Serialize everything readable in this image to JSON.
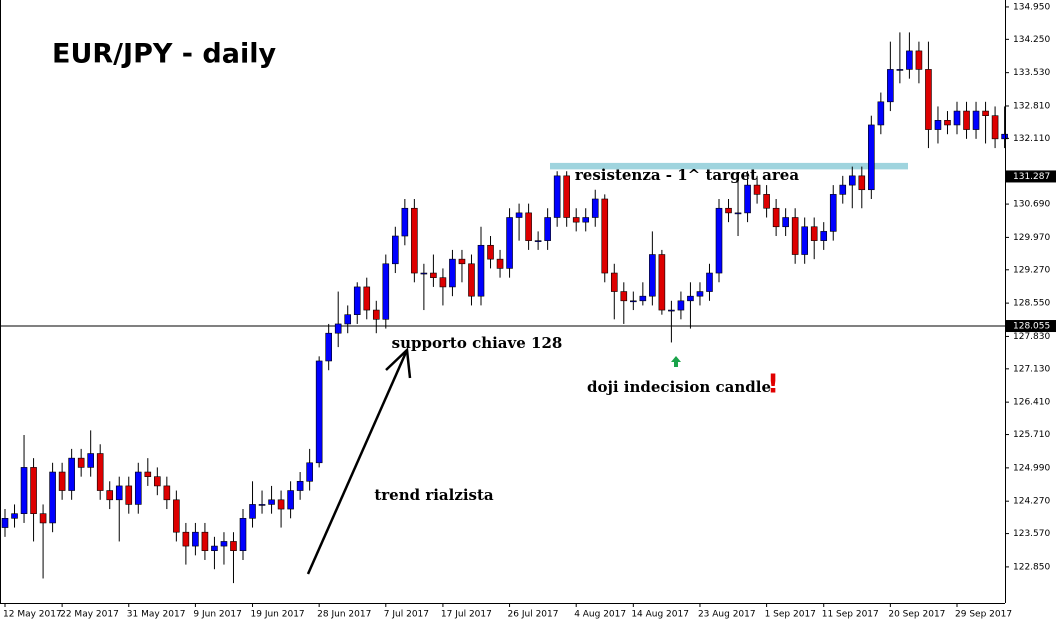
{
  "chart_data": {
    "type": "candlestick",
    "title": "EUR/JPY - daily",
    "categories": [
      "12 May 2017",
      null,
      null,
      null,
      null,
      null,
      "22 May 2017",
      null,
      null,
      null,
      null,
      null,
      null,
      "31 May 2017",
      null,
      null,
      null,
      null,
      null,
      null,
      "9 Jun 2017",
      null,
      null,
      null,
      null,
      null,
      "19 Jun 2017",
      null,
      null,
      null,
      null,
      null,
      null,
      "28 Jun 2017",
      null,
      null,
      null,
      null,
      null,
      null,
      "7 Jul 2017",
      null,
      null,
      null,
      null,
      null,
      "17 Jul 2017",
      null,
      null,
      null,
      null,
      null,
      null,
      "26 Jul 2017",
      null,
      null,
      null,
      null,
      null,
      null,
      "4 Aug 2017",
      null,
      null,
      null,
      null,
      null,
      "14 Aug 2017",
      null,
      null,
      null,
      null,
      null,
      null,
      "23 Aug 2017",
      null,
      null,
      null,
      null,
      null,
      null,
      "1 Sep 2017",
      null,
      null,
      null,
      null,
      null,
      "11 Sep 2017",
      null,
      null,
      null,
      null,
      null,
      null,
      "20 Sep 2017",
      null,
      null,
      null,
      null,
      null,
      null,
      "29 Sep 2017",
      null,
      null,
      null,
      null,
      null
    ],
    "open": [
      123.7,
      123.9,
      124.0,
      125.0,
      124.0,
      123.8,
      124.9,
      124.5,
      125.2,
      125.0,
      125.3,
      124.5,
      124.3,
      124.6,
      124.2,
      124.9,
      124.8,
      124.6,
      124.3,
      123.6,
      123.3,
      123.6,
      123.2,
      123.3,
      123.4,
      123.2,
      123.9,
      124.2,
      124.2,
      124.3,
      124.1,
      124.5,
      124.7,
      125.1,
      127.3,
      127.9,
      128.1,
      128.3,
      128.9,
      128.4,
      128.2,
      129.4,
      130.0,
      130.6,
      129.2,
      129.2,
      129.1,
      128.9,
      129.5,
      129.4,
      128.7,
      129.8,
      129.5,
      129.3,
      130.4,
      130.5,
      129.9,
      129.9,
      130.4,
      131.3,
      130.4,
      130.3,
      130.4,
      130.8,
      129.2,
      128.8,
      128.6,
      128.6,
      128.7,
      129.6,
      128.4,
      128.4,
      128.6,
      128.7,
      128.8,
      129.2,
      130.6,
      130.5,
      130.5,
      131.1,
      130.9,
      130.6,
      130.2,
      130.4,
      129.6,
      130.2,
      129.9,
      130.1,
      130.9,
      131.1,
      131.3,
      131.0,
      132.4,
      132.9,
      133.6,
      133.6,
      134.0,
      133.6,
      132.3,
      132.5,
      132.4,
      132.7,
      132.3,
      132.7,
      132.6,
      132.1
    ],
    "high": [
      124.1,
      124.2,
      125.7,
      125.2,
      124.2,
      125.1,
      125.1,
      125.4,
      125.4,
      125.8,
      125.5,
      124.7,
      124.8,
      124.8,
      125.1,
      125.2,
      125.0,
      124.8,
      124.5,
      123.8,
      123.8,
      123.8,
      123.5,
      123.6,
      123.6,
      124.1,
      124.7,
      124.5,
      124.6,
      124.5,
      124.7,
      124.9,
      125.4,
      127.4,
      128.1,
      128.8,
      128.5,
      129.0,
      129.1,
      128.6,
      129.6,
      130.2,
      130.8,
      130.8,
      129.4,
      129.6,
      129.3,
      129.7,
      129.7,
      129.6,
      130.2,
      130.0,
      129.7,
      130.6,
      130.7,
      130.7,
      130.1,
      130.6,
      131.4,
      131.4,
      130.6,
      130.6,
      131.0,
      130.9,
      129.4,
      129.0,
      128.8,
      129.0,
      130.1,
      129.7,
      128.6,
      128.8,
      129.0,
      129.0,
      129.4,
      130.8,
      130.8,
      131.3,
      131.4,
      131.3,
      131.1,
      130.8,
      130.6,
      130.6,
      130.4,
      130.4,
      130.3,
      131.1,
      131.3,
      131.5,
      131.5,
      132.6,
      133.1,
      134.2,
      134.4,
      134.4,
      134.2,
      134.2,
      132.8,
      132.7,
      132.9,
      132.9,
      132.9,
      132.9,
      132.8,
      132.8
    ],
    "low": [
      123.5,
      123.7,
      123.8,
      123.4,
      122.6,
      123.6,
      124.3,
      124.3,
      124.8,
      124.8,
      124.3,
      124.1,
      123.4,
      124.0,
      124.0,
      124.6,
      124.4,
      124.1,
      123.4,
      122.9,
      123.1,
      123.0,
      122.8,
      122.9,
      122.5,
      123.0,
      123.7,
      124.0,
      124.0,
      123.7,
      123.9,
      124.3,
      124.5,
      125.0,
      127.1,
      127.6,
      127.9,
      128.1,
      128.2,
      127.9,
      128.0,
      129.2,
      129.8,
      129.0,
      128.4,
      128.9,
      128.5,
      128.7,
      129.0,
      128.5,
      128.5,
      129.3,
      129.1,
      129.1,
      129.9,
      129.7,
      129.7,
      129.7,
      130.2,
      130.2,
      130.1,
      130.1,
      130.2,
      129.0,
      128.2,
      128.1,
      128.4,
      128.5,
      128.5,
      128.3,
      127.7,
      128.2,
      128.0,
      128.5,
      128.6,
      129.0,
      130.3,
      130.0,
      130.3,
      130.7,
      130.4,
      130.0,
      130.0,
      129.4,
      129.4,
      129.5,
      129.7,
      129.9,
      130.7,
      130.6,
      130.6,
      130.8,
      132.2,
      132.7,
      133.3,
      133.4,
      133.3,
      131.9,
      132.0,
      132.2,
      132.2,
      132.1,
      132.1,
      132.0,
      131.9,
      131.9
    ],
    "close": [
      123.9,
      124.0,
      125.0,
      124.0,
      123.8,
      124.9,
      124.5,
      125.2,
      125.0,
      125.3,
      124.5,
      124.3,
      124.6,
      124.2,
      124.9,
      124.8,
      124.6,
      124.3,
      123.6,
      123.3,
      123.6,
      123.2,
      123.3,
      123.4,
      123.2,
      123.9,
      124.2,
      124.2,
      124.3,
      124.1,
      124.5,
      124.7,
      125.1,
      127.3,
      127.9,
      128.1,
      128.3,
      128.9,
      128.4,
      128.2,
      129.4,
      130.0,
      130.6,
      129.2,
      129.2,
      129.1,
      128.9,
      129.5,
      129.4,
      128.7,
      129.8,
      129.5,
      129.3,
      130.4,
      130.5,
      129.9,
      129.9,
      130.4,
      131.3,
      130.4,
      130.3,
      130.4,
      130.8,
      129.2,
      128.8,
      128.6,
      128.6,
      128.7,
      129.6,
      128.4,
      128.4,
      128.6,
      128.7,
      128.8,
      129.2,
      130.6,
      130.5,
      130.5,
      131.1,
      130.9,
      130.6,
      130.2,
      130.4,
      129.6,
      130.2,
      129.9,
      130.1,
      130.9,
      131.1,
      131.3,
      131.0,
      132.4,
      132.9,
      133.6,
      133.6,
      134.0,
      133.6,
      132.3,
      132.5,
      132.4,
      132.7,
      132.3,
      132.7,
      132.6,
      132.1,
      132.2
    ],
    "up_color": "#0000ff",
    "down_color": "#dd0000",
    "ylim": [
      122.07,
      135.1
    ],
    "yticks": [
      {
        "value": 122.85,
        "label": "122.850"
      },
      {
        "value": 123.57,
        "label": "123.570"
      },
      {
        "value": 124.27,
        "label": "124.270"
      },
      {
        "value": 124.99,
        "label": "124.990"
      },
      {
        "value": 125.71,
        "label": "125.710"
      },
      {
        "value": 126.41,
        "label": "126.410"
      },
      {
        "value": 127.13,
        "label": "127.130"
      },
      {
        "value": 127.83,
        "label": "127.830"
      },
      {
        "value": 128.55,
        "label": "128.550"
      },
      {
        "value": 129.27,
        "label": "129.270"
      },
      {
        "value": 129.97,
        "label": "129.970"
      },
      {
        "value": 130.69,
        "label": "130.690"
      },
      {
        "value": 132.11,
        "label": "132.110"
      },
      {
        "value": 132.81,
        "label": "132.810"
      },
      {
        "value": 133.53,
        "label": "133.530"
      },
      {
        "value": 134.25,
        "label": "134.250"
      },
      {
        "value": 134.95,
        "label": "134.950"
      }
    ],
    "current_price": {
      "value": 131.287,
      "label": "131.287"
    },
    "support": {
      "value": 128.055,
      "label": "128.055",
      "text": "supporto chiave 128"
    },
    "resistance_zone": {
      "range": [
        131.44,
        131.58
      ],
      "text": "resistenza - 1^ target area",
      "color": "#9fd4de"
    },
    "annotations": [
      "doji indecision candle",
      "!",
      "trend rialzista"
    ]
  }
}
